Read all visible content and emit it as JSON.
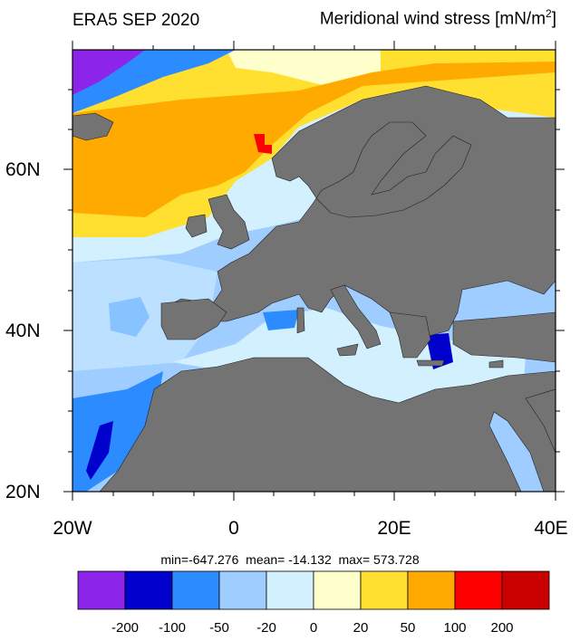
{
  "header": {
    "left_title": "ERA5 SEP 2020",
    "right_title_main": "Meridional wind stress [mN/m",
    "right_title_sup": "2",
    "right_title_end": "]"
  },
  "axes": {
    "lat_labels": [
      "60N",
      "40N",
      "20N"
    ],
    "lon_labels": [
      "20W",
      "0",
      "20E",
      "40E"
    ]
  },
  "stats": {
    "text": "min=-647.276  mean= -14.132  max= 573.728"
  },
  "colorbar": {
    "colors": [
      "#8d24ea",
      "#0000cd",
      "#2c8cff",
      "#a0cdff",
      "#d3f0ff",
      "#ffffcc",
      "#ffe030",
      "#ffaa00",
      "#ff0000",
      "#c80000"
    ],
    "tick_labels": [
      "-200",
      "-100",
      "-50",
      "-20",
      "0",
      "20",
      "50",
      "100",
      "200"
    ]
  }
}
